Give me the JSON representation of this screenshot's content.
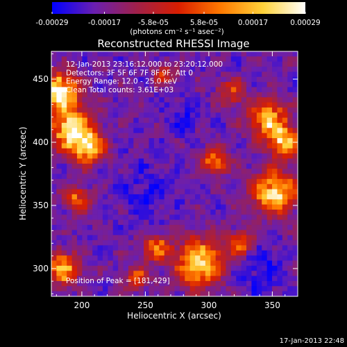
{
  "chart_data": {
    "type": "heatmap",
    "title": "Reconstructed RHESSI Image",
    "xlabel": "Heliocentric X (arcsec)",
    "ylabel": "Heliocentric Y (arcsec)",
    "xlim": [
      176,
      370
    ],
    "ylim": [
      278,
      472
    ],
    "x_ticks": [
      200,
      250,
      300,
      350
    ],
    "y_ticks": [
      300,
      350,
      400,
      450
    ],
    "colorbar": {
      "range": [
        -0.00029,
        0.00029
      ],
      "tick_values": [
        -0.00029,
        -0.00017,
        -5.8e-05,
        5.8e-05,
        0.00017,
        0.00029
      ],
      "tick_labels": [
        "-0.00029",
        "-0.00017",
        "-5.8e-05",
        "5.8e-05",
        "0.00017",
        "0.00029"
      ],
      "unit_label": "(photons cm⁻² s⁻¹ asec⁻²)",
      "colors": [
        "#0000ff",
        "#6a1fb0",
        "#a0204a",
        "#d91e00",
        "#ff7a00",
        "#ffd23a",
        "#ffffff"
      ]
    },
    "annotations": [
      "12-Jan-2013 23:16:12.000 to 23:20:12.000",
      "Detectors: 3F 5F 6F 7F 8F 9F, Att 0",
      "Energy Range: 12.0 - 25.0 keV",
      "Clean     Total counts: 3.61E+03"
    ],
    "peak_label": "Position of Peak = [181,429]",
    "peak_position": [
      181,
      429
    ],
    "hot_regions": [
      {
        "x": 183,
        "y": 440,
        "radius": 14,
        "intensity": 1.0
      },
      {
        "x": 192,
        "y": 410,
        "radius": 16,
        "intensity": 0.9
      },
      {
        "x": 205,
        "y": 395,
        "radius": 12,
        "intensity": 0.7
      },
      {
        "x": 196,
        "y": 355,
        "radius": 10,
        "intensity": 0.5
      },
      {
        "x": 185,
        "y": 300,
        "radius": 12,
        "intensity": 0.75
      },
      {
        "x": 258,
        "y": 316,
        "radius": 10,
        "intensity": 0.55
      },
      {
        "x": 243,
        "y": 292,
        "radius": 9,
        "intensity": 0.5
      },
      {
        "x": 292,
        "y": 305,
        "radius": 18,
        "intensity": 0.85
      },
      {
        "x": 325,
        "y": 320,
        "radius": 10,
        "intensity": 0.55
      },
      {
        "x": 346,
        "y": 418,
        "radius": 14,
        "intensity": 0.8
      },
      {
        "x": 360,
        "y": 400,
        "radius": 12,
        "intensity": 0.7
      },
      {
        "x": 352,
        "y": 360,
        "radius": 16,
        "intensity": 0.85
      },
      {
        "x": 305,
        "y": 385,
        "radius": 10,
        "intensity": 0.55
      },
      {
        "x": 318,
        "y": 440,
        "radius": 10,
        "intensity": 0.4
      },
      {
        "x": 265,
        "y": 455,
        "radius": 8,
        "intensity": 0.35
      }
    ],
    "cold_regions": [
      {
        "x": 250,
        "y": 360,
        "radius": 22
      },
      {
        "x": 340,
        "y": 300,
        "radius": 20
      },
      {
        "x": 280,
        "y": 420,
        "radius": 14
      }
    ]
  },
  "footer": {
    "timestamp": "17-Jan-2013 22:48"
  }
}
